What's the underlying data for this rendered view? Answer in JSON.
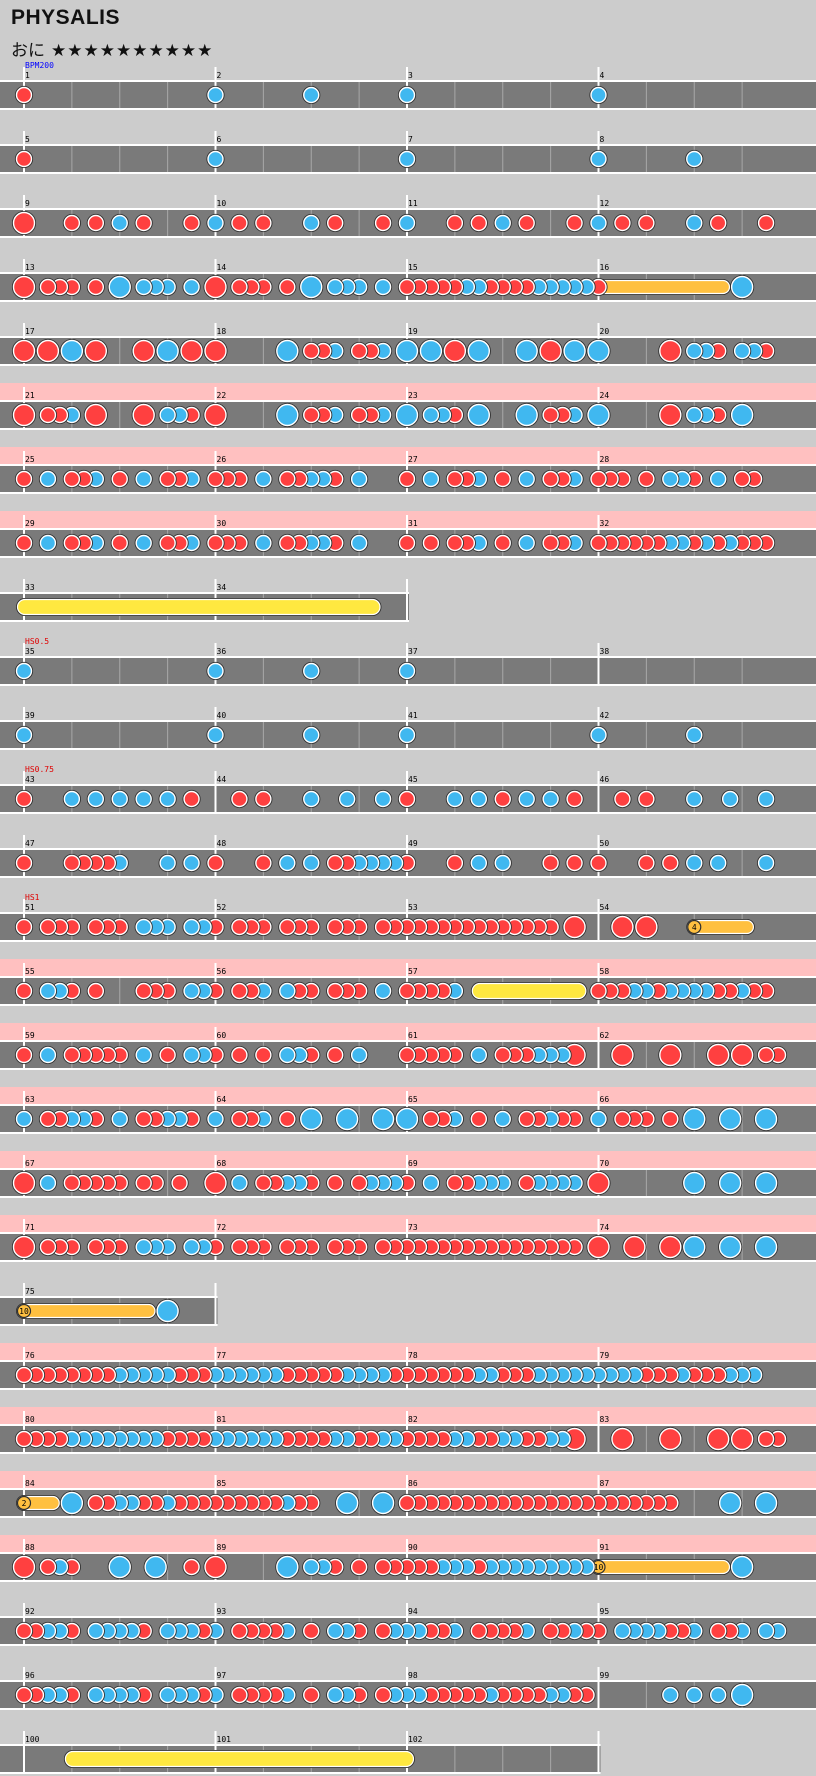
{
  "song": {
    "title": "PHYSALIS",
    "course_label": "おに",
    "stars": "★★★★★★★★★★",
    "difficulty_level": 10
  },
  "colors": {
    "background": "#cccccc",
    "lane": "#7a7a7a",
    "lane_gogo": "#ffc0c0",
    "don": "#ff4040",
    "ka": "#40b8f0",
    "drumroll": "#ffc040",
    "big_drumroll": "#ffe840",
    "bpm_text": "#0000ff",
    "hs_text": "#e00000"
  },
  "chart_data": {
    "type": "rhythm-game-chart",
    "measures_per_row": 4,
    "legend": {
      "d": "don (small red)",
      "k": "ka (small blue)",
      "D": "big don (large red)",
      "K": "big ka (large blue)",
      "r": "drumroll (orange)",
      "R": "big drumroll (yellow)"
    },
    "rows": [
      {
        "start": 1,
        "count": 4,
        "notes": "d0 k4 k6 k8 k12",
        "events": [
          {
            "beat": 0,
            "text": "BPM200",
            "kind": "bpm"
          }
        ]
      },
      {
        "start": 5,
        "count": 4,
        "notes": "d0 k4 k8 k12 k14"
      },
      {
        "start": 9,
        "count": 4,
        "notes": "D0 d1 d1.5 k2 d2.5 d3.5 k4 d4.5 d5 k6 d6.5 d7.5 k8 d9 d9.5 k10 d10.5 d11.5 k12 d12.5 d13 k14 d14.5 d15.5"
      },
      {
        "start": 13,
        "count": 4,
        "notes": "D0 d0.5 d0.75 d1 d1.5 K2 k2.5 k2.75 k3 k3.5 D4 d4.5 d4.75 d5 d5.5 K6 k6.5 k6.75 k7 k7.5 d8 d8.25 d8.5 d8.75 d9 k9.25 k9.5 d9.75 d10 d10.25 d10.5 k10.75 k11 k11.25 k11.5 k11.75 d12",
        "rolls": [
          {
            "from": 12,
            "to": 14.6,
            "big": false,
            "count": 10
          }
        ],
        "tail": "K15"
      },
      {
        "start": 17,
        "count": 4,
        "notes": "D0 D0.5 K1 D1.5 D2.5 K3 D3.5 D4 K5.5 d6 d6.25 k6.5 d7 d7.25 k7.5 K8 K8.5 D9 K9.5 K10.5 D11 K11.5 K12 D13.5 k14 k14.25 d14.5 k15 k15.25 d15.5"
      },
      {
        "start": 21,
        "count": 4,
        "notes": "D0 d0.5 d0.75 k1 D1.5 D2.5 k3 k3.25 d3.5 D4 K5.5 d6 d6.25 k6.5 d7 d7.25 k7.5 K8 k8.5 k8.75 d9 K9.5 K10.5 d11 d11.25 k11.5 K12 D13.5 k14 k14.25 d14.5 K15",
        "gogo": true
      },
      {
        "start": 25,
        "count": 4,
        "notes": "d0 k0.5 d1 d1.25 k1.5 d2 k2.5 d3 d3.25 k3.5 d4 d4.25 d4.5 k5 d5.5 d5.75 k6 k6.25 d6.5 k7 d8 k8.5 d9 d9.25 k9.5 d10 k10.5 d11 d11.25 k11.5 d12 d12.25 d12.5 d13 k13.5 k13.75 d14 k14.5 d15 d15.25",
        "gogo": true
      },
      {
        "start": 29,
        "count": 4,
        "notes": "d0 k0.5 d1 d1.25 k1.5 d2 k2.5 d3 d3.25 k3.5 d4 d4.25 d4.5 k5 d5.5 d5.75 k6 k6.25 d6.5 k7 d8 d8.5 d9 d9.25 k9.5 d10 k10.5 d11 d11.25 k11.5 d12 d12.25 d12.5 d12.75 d13 d13.25 k13.5 k13.75 d14 k14.25 d14.5 k14.75 d15 d15.25 d15.5",
        "gogo": true
      },
      {
        "start": 33,
        "count": 2,
        "notes": "",
        "rolls": [
          {
            "from": 0,
            "to": 7.3,
            "big": true
          }
        ],
        "tail": "",
        "ending": true
      },
      {
        "start": 35,
        "count": 4,
        "notes": "k0 k4 k6 k8",
        "events": [
          {
            "beat": 0,
            "text": "HS0.5",
            "kind": "hs"
          }
        ]
      },
      {
        "start": 39,
        "count": 4,
        "notes": "k0 k4 k6 k8 k12 k14"
      },
      {
        "start": 43,
        "count": 4,
        "notes": "d0 k1 k1.5 k2 k2.5 k3 d3.5 d4.5 d5 k6 k6.75 k7.5 d8 k9 k9.5 d10 k10.5 k11 d11.5 d12.5 d13 k14 k14.75 k15.5",
        "events": [
          {
            "beat": 0,
            "text": "HS0.75",
            "kind": "hs"
          }
        ]
      },
      {
        "start": 47,
        "count": 4,
        "notes": "d0 d1 d1.25 d1.5 d1.75 k2 k3 k3.5 d4 d5 k5.5 k6 d6.5 d6.75 k7 k7.25 k7.5 k7.75 d8 d9 k9.5 k10 d11 d11.5 d12 d13 d13.5 k14 k14.5 k15.5"
      },
      {
        "start": 51,
        "count": 4,
        "notes": "d0 d0.5 d0.75 d1 d1.5 d1.75 d2 k2.5 k2.75 k3 k3.5 k3.75 d4 d4.5 d4.75 d5 d5.5 d5.75 d6 d6.5 d6.75 d7 d7.5 d7.75 d8 d8.25 d8.5 d8.75 d9 d9.25 d9.5 d9.75 d10 d10.25 d10.5 d10.75 d11 D11.5 D12.5 D13",
        "events": [
          {
            "beat": 0,
            "text": "HS1",
            "kind": "hs"
          }
        ],
        "rolls": [
          {
            "from": 14,
            "to": 15.1,
            "big": false,
            "count": 4
          }
        ]
      },
      {
        "start": 55,
        "count": 4,
        "notes": "d0 k0.5 k0.75 d1 d1.5 d2.5 d2.75 d3 k3.5 k3.75 d4 d4.5 d4.75 k5 k5.5 d5.75 d6 d6.5 d6.75 d7 k7.5 d8 d8.25 d8.5 d8.75 k9",
        "rolls": [
          {
            "from": 9.5,
            "to": 11.6,
            "big": true
          }
        ],
        "tail": "d12 d12.25 d12.5 k12.75 k13 d13.25 k13.5 k13.75 k14 k14.25 d14.5 d14.75 k15 d15.25 d15.5",
        "gogo": true
      },
      {
        "start": 59,
        "count": 4,
        "notes": "d0 k0.5 d1 d1.25 d1.5 d1.75 d2 k2.5 d3 k3.5 k3.75 d4 d4.5 d5 k5.5 k5.75 d6 d6.5 k7 d8 d8.25 d8.5 d8.75 d9 k9.5 d10 d10.25 d10.5 k10.75 k11 k11.25 D11.5 D12.5 D13.5 D14.5 D15 d15.5 d15.75",
        "gogo": true
      },
      {
        "start": 63,
        "count": 4,
        "notes": "k0 d0.5 d0.75 k1 k1.25 d1.5 k2 d2.5 d2.75 k3 k3.25 d3.5 k4 d4.5 d4.75 k5 d5.5 K6 K6.75 K7.5 K8 d8.5 d8.75 k9 d9.5 k10 d10.5 d10.75 k11 d11.25 d11.5 k12 d12.5 d12.75 d13 d13.5 K14 K14.75 K15.5",
        "gogo": true
      },
      {
        "start": 67,
        "count": 4,
        "notes": "D0 k0.5 d1 d1.25 d1.5 d1.75 d2 d2.5 d2.75 d3.25 D4 k4.5 d5 d5.25 k5.5 k5.75 d6 d6.5 d7 k7.25 k7.5 k7.75 d8 k8.5 d9 d9.25 k9.5 k9.75 k10 d10.5 k10.75 k11 k11.25 k11.5 D12 K14 K14.75 K15.5",
        "gogo": true
      },
      {
        "start": 71,
        "count": 4,
        "notes": "D0 d0.5 d0.75 d1 d1.5 d1.75 d2 k2.5 k2.75 k3 k3.5 k3.75 d4 d4.5 d4.75 d5 d5.5 d5.75 d6 d6.5 d6.75 d7 d7.5 d7.75 d8 d8.25 d8.5 d8.75 d9 d9.25 d9.5 d9.75 d10 d10.25 d10.5 d10.75 d11 d11.25 d11.5 D12 D12.75 D13.5 K14 K14.75 K15.5",
        "gogo": true
      },
      {
        "start": 75,
        "count": 1,
        "notes": "",
        "rolls": [
          {
            "from": 0,
            "to": 2.6,
            "big": false,
            "count": 10
          }
        ],
        "tail": "K3",
        "ending": true
      },
      {
        "start": 76,
        "count": 4,
        "notes": "d0 d0.25 d0.5 d0.75 d1 d1.25 d1.5 d1.75 k2 k2.25 k2.5 k2.75 k3 d3.25 d3.5 d3.75 k4 k4.25 k4.5 k4.75 k5 k5.25 d5.5 d5.75 d6 d6.25 d6.5 k6.75 k7 k7.25 k7.5 d7.75 d8 d8.25 d8.5 d8.75 d9 d9.25 k9.5 k9.75 d10 d10.25 d10.5 k10.75 k11 k11.25 k11.5 k11.75 k12 k12.25 k12.5 k12.75 d13 d13.25 d13.5 k13.75 d14 d14.25 d14.5 k14.75 k15 k15.25",
        "gogo": true
      },
      {
        "start": 80,
        "count": 4,
        "notes": "d0 d0.25 d0.5 d0.75 k1 k1.25 k1.5 k1.75 k2 k2.25 k2.5 k2.75 d3 d3.25 d3.5 d3.75 k4 k4.25 k4.5 k4.75 k5 k5.25 d5.5 d5.75 d6 d6.25 k6.5 k6.75 d7 d7.25 k7.5 k7.75 d8 d8.25 d8.5 d8.75 k9 k9.25 d9.5 d9.75 k10 k10.25 d10.5 d10.75 k11 k11.25 D11.5 D12.5 D13.5 D14.5 D15 d15.5 d15.75",
        "gogo": true
      },
      {
        "start": 84,
        "count": 4,
        "notes": "",
        "rolls": [
          {
            "from": 0,
            "to": 0.6,
            "big": false,
            "count": 2
          }
        ],
        "tail": "K1 d1.5 d1.75 k2 k2.25 d2.5 d2.75 k3 d3.25 d3.5 d3.75 d4 d4.25 d4.5 d4.75 d5 d5.25 k5.5 d5.75 d6 K6.75 K7.5 d8 d8.25 d8.5 d8.75 d9 d9.25 d9.5 d9.75 d10 d10.25 d10.5 d10.75 d11 d11.25 d11.5 d11.75 d12 d12.25 d12.5 d12.75 d13 d13.25 d13.5 K14.75 K15.5",
        "gogo": true
      },
      {
        "start": 88,
        "count": 4,
        "notes": "D0 d0.5 k0.75 d1 K2 K2.75 d3.5 D4 K5.5 k6 k6.25 d6.5 d7 d7.5 d7.75 d8 d8.25 d8.5 k8.75 k9 k9.25 d9.5 k9.75 k10 k10.25 k10.5 k10.75 k11 k11.25 k11.5 k11.75",
        "rolls": [
          {
            "from": 12,
            "to": 14.6,
            "big": false,
            "count": 10
          }
        ],
        "tail": "K15",
        "gogo": true
      },
      {
        "start": 92,
        "count": 4,
        "notes": "d0 d0.25 k0.5 k0.75 d1 k1.5 k1.75 k2 k2.25 d2.5 k3 k3.25 k3.5 d3.75 k4 d4.5 d4.75 d5 d5.25 k5.5 d6 k6.5 k6.75 d7 d7.5 k7.75 k8 k8.25 d8.5 d8.75 k9 d9.5 d9.75 d10 d10.25 k10.5 d11 d11.25 k11.5 d11.75 d12 k12.5 k12.75 k13 k13.25 d13.5 d13.75 k14 d14.5 d14.75 k15 k15.5 k15.75"
      },
      {
        "start": 96,
        "count": 4,
        "notes": "d0 d0.25 k0.5 k0.75 d1 k1.5 k1.75 k2 k2.25 d2.5 k3 k3.25 k3.5 d3.75 k4 d4.5 d4.75 d5 d5.25 k5.5 d6 k6.5 k6.75 d7 d7.5 k7.75 k8 k8.25 d8.5 d8.75 d9 d9.25 d9.5 k9.75 d10 d10.25 d10.5 d10.75 k11 k11.25 d11.5 d11.75 k13.5 k14 k14.5 K15"
      },
      {
        "start": 100,
        "count": 3,
        "notes": "",
        "rolls": [
          {
            "from": 1,
            "to": 8,
            "big": true
          }
        ],
        "tail": "",
        "ending": true
      }
    ]
  }
}
